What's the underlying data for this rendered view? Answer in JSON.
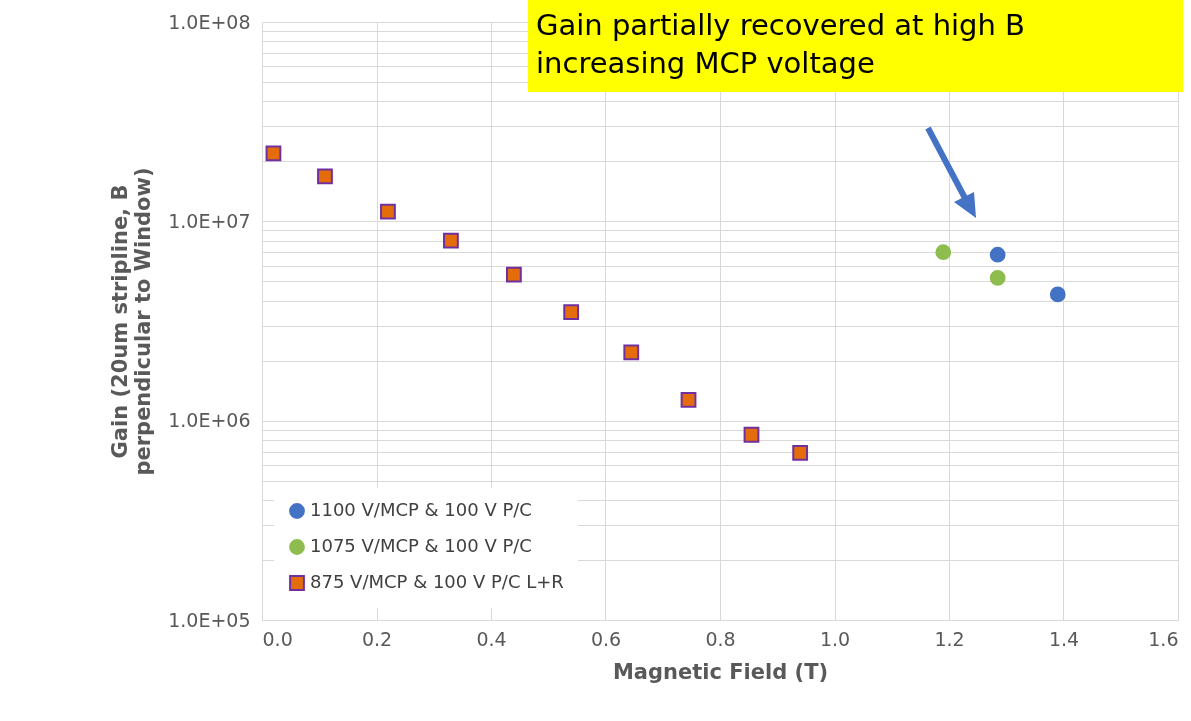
{
  "chart_data": {
    "type": "scatter",
    "xlabel": "Magnetic Field (T)",
    "ylabel": "Gain (20um stripline, B perpendicular to Window)",
    "log": "y",
    "grid": true,
    "legend": "bottom left",
    "xlim": [
      0,
      1.6
    ],
    "xticks": [
      {
        "value": 0,
        "label": "0.0"
      },
      0.2,
      0.4,
      0.6,
      0.8,
      {
        "value": 1,
        "label": "1.0"
      },
      1.2,
      1.4,
      1.6
    ],
    "ylim": [
      100000,
      100000000
    ],
    "yticks": [
      {
        "value": 100000,
        "label": "1.0E+05"
      },
      {
        "value": 200000,
        "label": null
      },
      {
        "value": 300000,
        "label": null
      },
      {
        "value": 400000,
        "label": null
      },
      {
        "value": 500000,
        "label": null
      },
      {
        "value": 600000,
        "label": null
      },
      {
        "value": 700000,
        "label": null
      },
      {
        "value": 800000,
        "label": null
      },
      {
        "value": 900000,
        "label": null
      },
      {
        "value": 1000000,
        "label": "1.0E+06"
      },
      {
        "value": 2000000,
        "label": null
      },
      {
        "value": 3000000,
        "label": null
      },
      {
        "value": 4000000,
        "label": null
      },
      {
        "value": 5000000,
        "label": null
      },
      {
        "value": 6000000,
        "label": null
      },
      {
        "value": 7000000,
        "label": null
      },
      {
        "value": 8000000,
        "label": null
      },
      {
        "value": 9000000,
        "label": null
      },
      {
        "value": 10000000,
        "label": "1.0E+07"
      },
      {
        "value": 20000000,
        "label": null
      },
      {
        "value": 30000000,
        "label": null
      },
      {
        "value": 40000000,
        "label": null
      },
      {
        "value": 50000000,
        "label": null
      },
      {
        "value": 60000000,
        "label": null
      },
      {
        "value": 70000000,
        "label": null
      },
      {
        "value": 80000000,
        "label": null
      },
      {
        "value": 90000000,
        "label": null
      },
      {
        "value": 100000000,
        "label": "1.0E+08"
      }
    ],
    "annotations": [
      "Gain partially recovered at high B increasing MCP voltage"
    ],
    "series": [
      {
        "name": "1100 V/MCP & 100 V P/C",
        "color": "#4472c4",
        "marker": "circle",
        "x": [
          1.285,
          1.39
        ],
        "values": [
          6800000,
          4300000
        ]
      },
      {
        "name": "1075 V/MCP & 100 V P/C",
        "color": "#8fbc4f",
        "marker": "circle",
        "x": [
          1.19,
          1.285
        ],
        "values": [
          7000000,
          5200000
        ]
      },
      {
        "name": "875 V/MCP & 100 V P/C L+R",
        "color": "#e46c0a",
        "marker": "square",
        "x": [
          0.02,
          0.11,
          0.22,
          0.33,
          0.44,
          0.54,
          0.645,
          0.745,
          0.855,
          0.94
        ],
        "values": [
          21900000,
          16800000,
          11200000,
          8000000,
          5400000,
          3500000,
          2200000,
          1270000,
          850000,
          690000
        ]
      }
    ]
  }
}
